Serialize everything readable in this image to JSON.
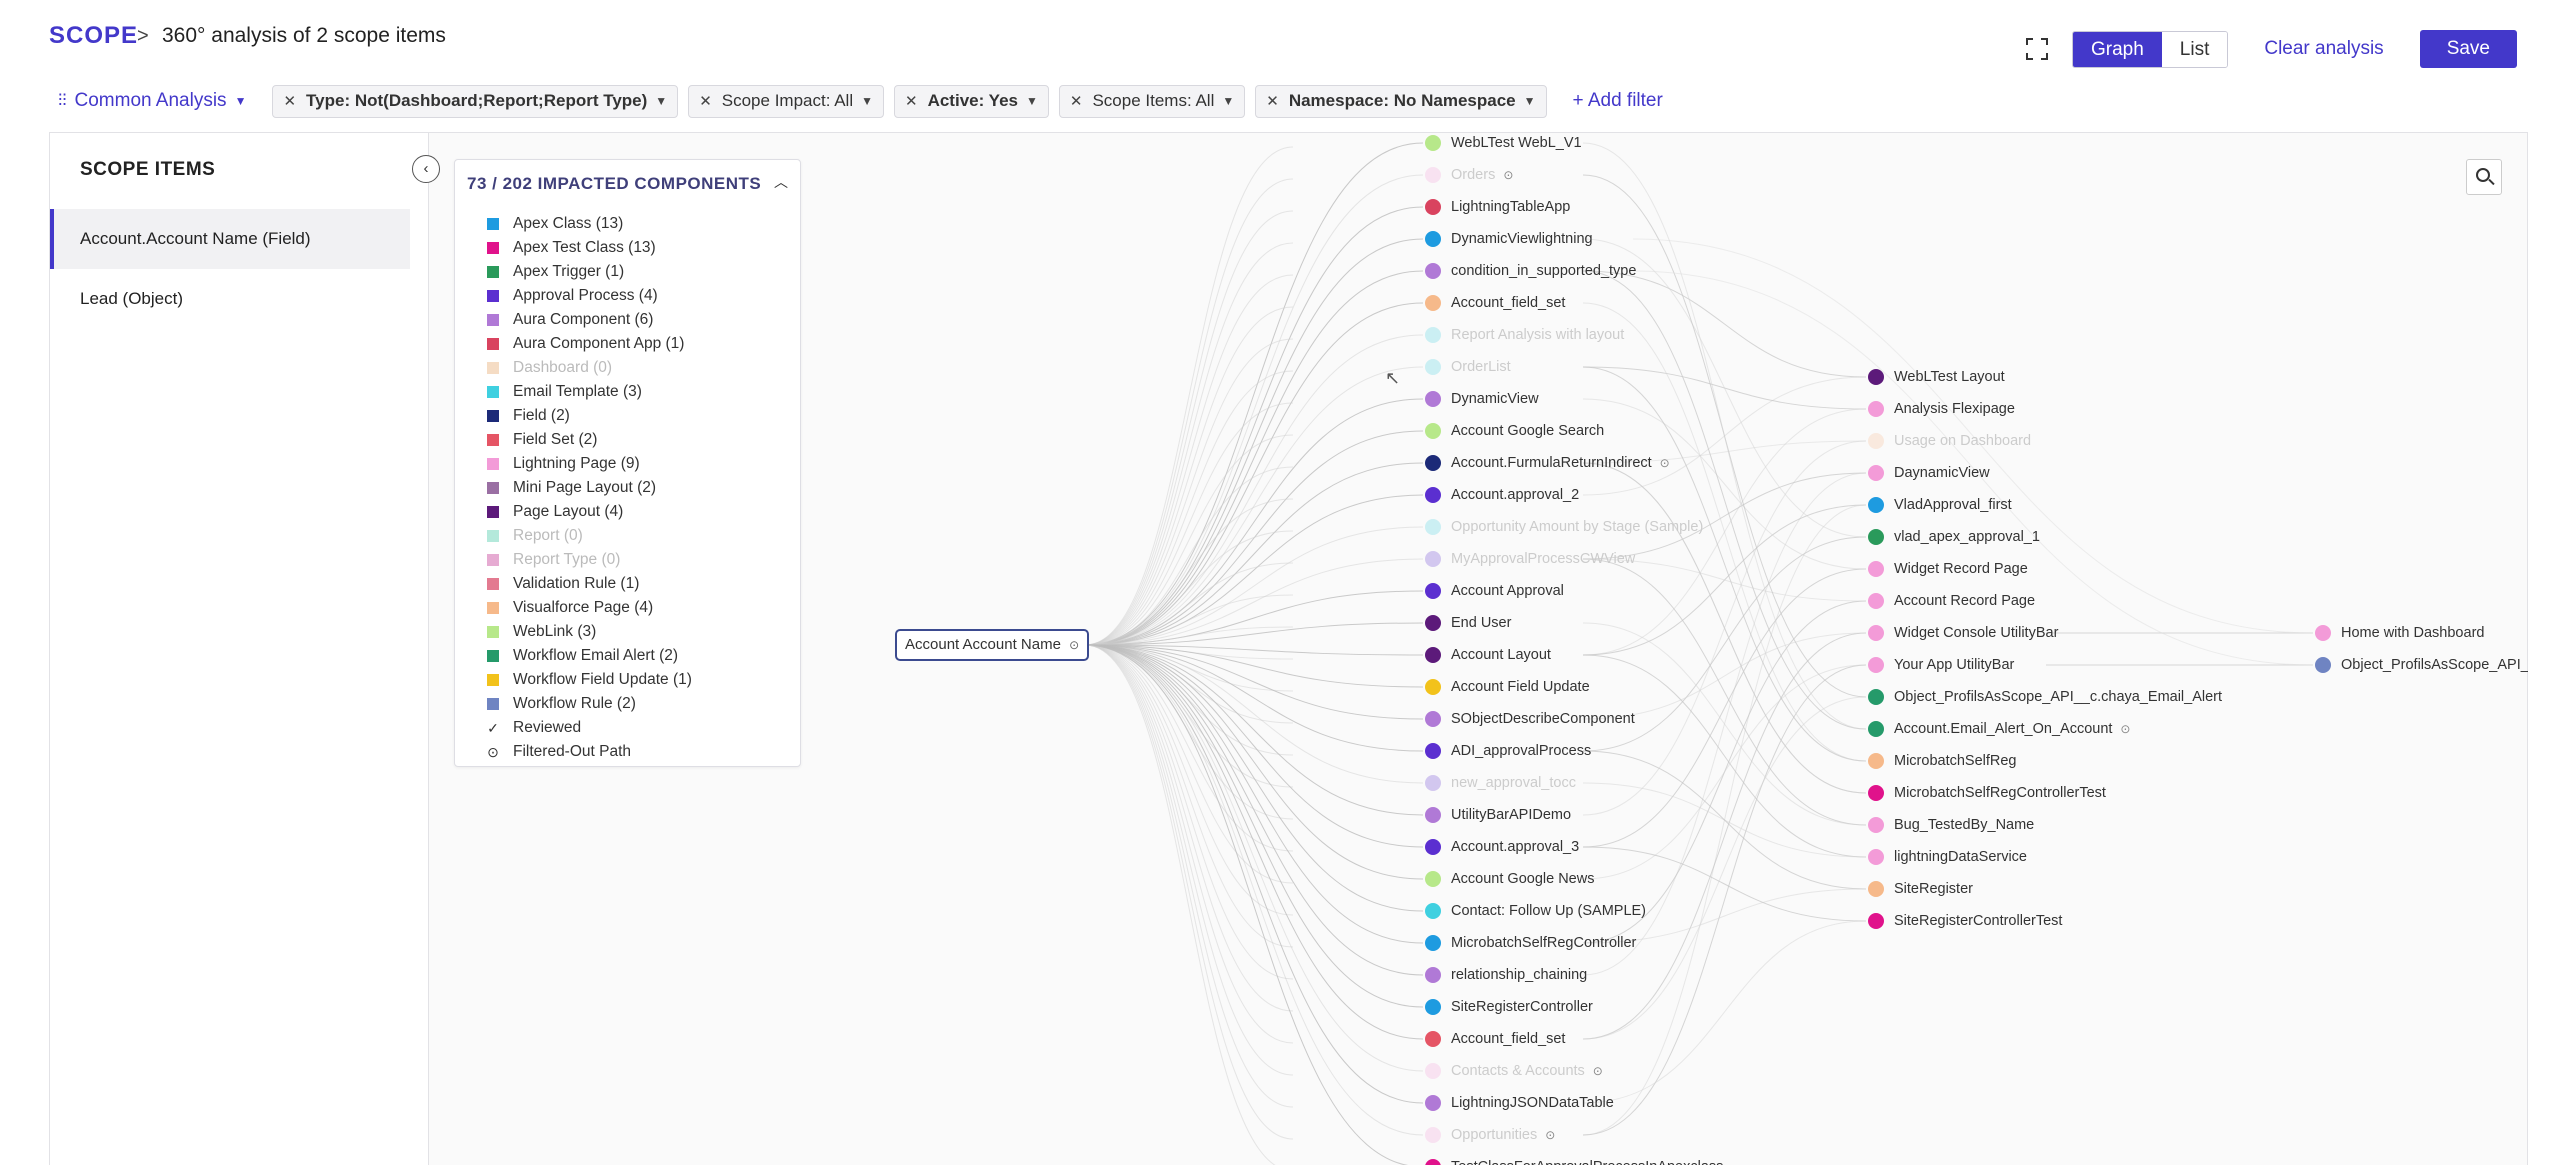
{
  "header": {
    "brand": "SCOPE",
    "separator": ">",
    "title": "360° analysis of 2 scope items",
    "view_graph": "Graph",
    "view_list": "List",
    "clear": "Clear analysis",
    "save": "Save"
  },
  "filters": {
    "common": "Common Analysis",
    "chips": [
      {
        "text": "Type: Not(Dashboard;Report;Report Type)",
        "bold": true
      },
      {
        "text": "Scope Impact: All",
        "bold": false
      },
      {
        "text": "Active: Yes",
        "bold": true
      },
      {
        "text": "Scope Items: All",
        "bold": false
      },
      {
        "text": "Namespace: No Namespace",
        "bold": true
      }
    ],
    "add": "Add filter"
  },
  "sidebar": {
    "title": "SCOPE ITEMS",
    "items": [
      {
        "label": "Account.Account Name (Field)",
        "selected": true
      },
      {
        "label": "Lead (Object)",
        "selected": false
      }
    ]
  },
  "legend": {
    "title": "73 / 202 IMPACTED COMPONENTS",
    "items": [
      {
        "label": "Apex Class (13)",
        "color": "#1e9be0",
        "dim": false
      },
      {
        "label": "Apex Test Class (13)",
        "color": "#e0128b",
        "dim": false
      },
      {
        "label": "Apex Trigger (1)",
        "color": "#2a9a5b",
        "dim": false
      },
      {
        "label": "Approval Process (4)",
        "color": "#5b2fd0",
        "dim": false
      },
      {
        "label": "Aura Component (6)",
        "color": "#b079d6",
        "dim": false
      },
      {
        "label": "Aura Component App (1)",
        "color": "#d9435f",
        "dim": false
      },
      {
        "label": "Dashboard (0)",
        "color": "#e6a86b",
        "dim": true
      },
      {
        "label": "Email Template (3)",
        "color": "#3fd0e0",
        "dim": false
      },
      {
        "label": "Field (2)",
        "color": "#1c2a78",
        "dim": false
      },
      {
        "label": "Field Set (2)",
        "color": "#e55565",
        "dim": false
      },
      {
        "label": "Lightning Page (9)",
        "color": "#f39bd8",
        "dim": false
      },
      {
        "label": "Mini Page Layout (2)",
        "color": "#9a6fa3",
        "dim": false
      },
      {
        "label": "Page Layout (4)",
        "color": "#5c1a7a",
        "dim": false
      },
      {
        "label": "Report (0)",
        "color": "#44c9a5",
        "dim": true
      },
      {
        "label": "Report Type (0)",
        "color": "#c02e8e",
        "dim": true
      },
      {
        "label": "Validation Rule (1)",
        "color": "#e37a90",
        "dim": false
      },
      {
        "label": "Visualforce Page (4)",
        "color": "#f6b98a",
        "dim": false
      },
      {
        "label": "WebLink (3)",
        "color": "#b7e88a",
        "dim": false
      },
      {
        "label": "Workflow Email Alert (2)",
        "color": "#259a6a",
        "dim": false
      },
      {
        "label": "Workflow Field Update (1)",
        "color": "#f2c21b",
        "dim": false
      },
      {
        "label": "Workflow Rule (2)",
        "color": "#6f84c2",
        "dim": false
      }
    ],
    "reviewed": "Reviewed",
    "filtered": "Filtered-Out Path"
  },
  "graph": {
    "root": "Account Account Name",
    "col1": [
      {
        "label": "WebLTest WebL_V1",
        "color": "#b7e88a",
        "dim": false,
        "fo": false
      },
      {
        "label": "Orders",
        "color": "#f39bd8",
        "dim": true,
        "fo": true
      },
      {
        "label": "LightningTableApp",
        "color": "#d9435f",
        "dim": false,
        "fo": false
      },
      {
        "label": "DynamicViewlightning",
        "color": "#1e9be0",
        "dim": false,
        "fo": false
      },
      {
        "label": "condition_in_supported_type",
        "color": "#b079d6",
        "dim": false,
        "fo": false
      },
      {
        "label": "Account_field_set",
        "color": "#f6b98a",
        "dim": false,
        "fo": false
      },
      {
        "label": "Report Analysis with layout",
        "color": "#3fd0e0",
        "dim": true,
        "fo": false
      },
      {
        "label": "OrderList",
        "color": "#3fd0e0",
        "dim": true,
        "fo": false
      },
      {
        "label": "DynamicView",
        "color": "#b079d6",
        "dim": false,
        "fo": false
      },
      {
        "label": "Account Google Search",
        "color": "#b7e88a",
        "dim": false,
        "fo": false
      },
      {
        "label": "Account.FurmulaReturnIndirect",
        "color": "#1c2a78",
        "dim": false,
        "fo": true
      },
      {
        "label": "Account.approval_2",
        "color": "#5b2fd0",
        "dim": false,
        "fo": false
      },
      {
        "label": "Opportunity Amount by Stage (Sample)",
        "color": "#3fd0e0",
        "dim": true,
        "fo": false
      },
      {
        "label": "MyApprovalProcessCWView",
        "color": "#5b2fd0",
        "dim": true,
        "fo": false
      },
      {
        "label": "Account Approval",
        "color": "#5b2fd0",
        "dim": false,
        "fo": false
      },
      {
        "label": "End User",
        "color": "#5c1a7a",
        "dim": false,
        "fo": false
      },
      {
        "label": "Account Layout",
        "color": "#5c1a7a",
        "dim": false,
        "fo": false
      },
      {
        "label": "Account Field Update",
        "color": "#f2c21b",
        "dim": false,
        "fo": false
      },
      {
        "label": "SObjectDescribeComponent",
        "color": "#b079d6",
        "dim": false,
        "fo": false
      },
      {
        "label": "ADI_approvalProcess",
        "color": "#5b2fd0",
        "dim": false,
        "fo": false
      },
      {
        "label": "new_approval_tocc",
        "color": "#5b2fd0",
        "dim": true,
        "fo": false
      },
      {
        "label": "UtilityBarAPIDemo",
        "color": "#b079d6",
        "dim": false,
        "fo": false
      },
      {
        "label": "Account.approval_3",
        "color": "#5b2fd0",
        "dim": false,
        "fo": false
      },
      {
        "label": "Account Google News",
        "color": "#b7e88a",
        "dim": false,
        "fo": false
      },
      {
        "label": "Contact: Follow Up (SAMPLE)",
        "color": "#3fd0e0",
        "dim": false,
        "fo": false
      },
      {
        "label": "MicrobatchSelfRegController",
        "color": "#1e9be0",
        "dim": false,
        "fo": false
      },
      {
        "label": "relationship_chaining",
        "color": "#b079d6",
        "dim": false,
        "fo": false
      },
      {
        "label": "SiteRegisterController",
        "color": "#1e9be0",
        "dim": false,
        "fo": false
      },
      {
        "label": "Account_field_set",
        "color": "#e55565",
        "dim": false,
        "fo": false
      },
      {
        "label": "Contacts & Accounts",
        "color": "#f39bd8",
        "dim": true,
        "fo": true
      },
      {
        "label": "LightningJSONDataTable",
        "color": "#b079d6",
        "dim": false,
        "fo": false
      },
      {
        "label": "Opportunities",
        "color": "#f39bd8",
        "dim": true,
        "fo": true
      },
      {
        "label": "TestClassForApprovalProcessInApexclass",
        "color": "#e0128b",
        "dim": false,
        "fo": false
      }
    ],
    "col2": [
      {
        "label": "WebLTest Layout",
        "color": "#5c1a7a",
        "dim": false,
        "fo": false
      },
      {
        "label": "Analysis Flexipage",
        "color": "#f39bd8",
        "dim": false,
        "fo": false
      },
      {
        "label": "Usage on Dashboard",
        "color": "#f6b98a",
        "dim": true,
        "fo": false
      },
      {
        "label": "DaynamicView",
        "color": "#f39bd8",
        "dim": false,
        "fo": false
      },
      {
        "label": "VladApproval_first",
        "color": "#1e9be0",
        "dim": false,
        "fo": false
      },
      {
        "label": "vlad_apex_approval_1",
        "color": "#2a9a5b",
        "dim": false,
        "fo": false
      },
      {
        "label": "Widget Record Page",
        "color": "#f39bd8",
        "dim": false,
        "fo": false
      },
      {
        "label": "Account Record Page",
        "color": "#f39bd8",
        "dim": false,
        "fo": false
      },
      {
        "label": "Widget Console UtilityBar",
        "color": "#f39bd8",
        "dim": false,
        "fo": false
      },
      {
        "label": "Your App UtilityBar",
        "color": "#f39bd8",
        "dim": false,
        "fo": false
      },
      {
        "label": "Object_ProfilsAsScope_API__c.chaya_Email_Alert",
        "color": "#259a6a",
        "dim": false,
        "fo": false
      },
      {
        "label": "Account.Email_Alert_On_Account",
        "color": "#259a6a",
        "dim": false,
        "fo": true
      },
      {
        "label": "MicrobatchSelfReg",
        "color": "#f6b98a",
        "dim": false,
        "fo": false
      },
      {
        "label": "MicrobatchSelfRegControllerTest",
        "color": "#e0128b",
        "dim": false,
        "fo": false
      },
      {
        "label": "Bug_TestedBy_Name",
        "color": "#f39bd8",
        "dim": false,
        "fo": false
      },
      {
        "label": "lightningDataService",
        "color": "#f39bd8",
        "dim": false,
        "fo": false
      },
      {
        "label": "SiteRegister",
        "color": "#f6b98a",
        "dim": false,
        "fo": false
      },
      {
        "label": "SiteRegisterControllerTest",
        "color": "#e0128b",
        "dim": false,
        "fo": false
      }
    ],
    "col3": [
      {
        "label": "Home with Dashboard",
        "color": "#f39bd8",
        "dim": false,
        "fo": false
      },
      {
        "label": "Object_ProfilsAsScope_API__c.Workflow",
        "color": "#6f84c2",
        "dim": false,
        "fo": false
      }
    ]
  }
}
